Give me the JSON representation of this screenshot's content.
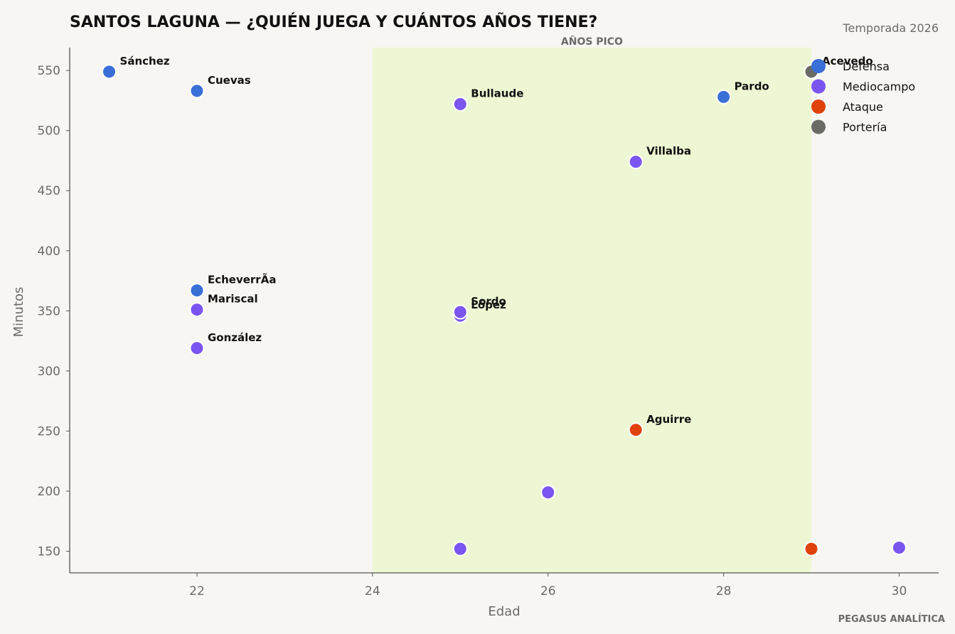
{
  "chart_data": {
    "type": "scatter",
    "title": "SANTOS LAGUNA — ¿QUIÉN JUEGA Y CUÁNTOS AÑOS TIENE?",
    "subtitle": "Temporada 2026",
    "xlabel": "Edad",
    "ylabel": "Minutos",
    "footer": "PEGASUS ANALÍTICA",
    "xlim": [
      20.55,
      30.45
    ],
    "ylim": [
      132,
      569
    ],
    "x_ticks": [
      22,
      24,
      26,
      28,
      30
    ],
    "y_ticks": [
      150,
      200,
      250,
      300,
      350,
      400,
      450,
      500,
      550
    ],
    "grid": false,
    "band": {
      "x_from": 24,
      "x_to": 29,
      "label": "AÑOS PICO",
      "color": "#eef7d3"
    },
    "legend": {
      "position": "top-right",
      "entries": [
        "Defensa",
        "Mediocampo",
        "Ataque",
        "Portería"
      ]
    },
    "colors": {
      "Defensa": "#3a6fd8",
      "Mediocampo": "#7b55f0",
      "Ataque": "#e0420c",
      "Portería": "#6b6b66"
    },
    "points": [
      {
        "name": "Sánchez",
        "x": 21,
        "y": 549,
        "group": "Defensa",
        "label": true
      },
      {
        "name": "Cuevas",
        "x": 22,
        "y": 533,
        "group": "Defensa",
        "label": true
      },
      {
        "name": "EcheverrÃ­a",
        "x": 22,
        "y": 367,
        "group": "Defensa",
        "label": true
      },
      {
        "name": "Mariscal",
        "x": 22,
        "y": 351,
        "group": "Mediocampo",
        "label": true
      },
      {
        "name": "González",
        "x": 22,
        "y": 319,
        "group": "Mediocampo",
        "label": true
      },
      {
        "name": "Bullaude",
        "x": 25,
        "y": 522,
        "group": "Mediocampo",
        "label": true
      },
      {
        "name": "López",
        "x": 25,
        "y": 346,
        "group": "Mediocampo",
        "label": true
      },
      {
        "name": "Sordo",
        "x": 25,
        "y": 349,
        "group": "Mediocampo",
        "label": true
      },
      {
        "name": "",
        "x": 25,
        "y": 152,
        "group": "Mediocampo",
        "label": false
      },
      {
        "name": "",
        "x": 26,
        "y": 199,
        "group": "Mediocampo",
        "label": false
      },
      {
        "name": "Villalba",
        "x": 27,
        "y": 474,
        "group": "Mediocampo",
        "label": true
      },
      {
        "name": "Aguirre",
        "x": 27,
        "y": 251,
        "group": "Ataque",
        "label": true
      },
      {
        "name": "Pardo",
        "x": 28,
        "y": 528,
        "group": "Defensa",
        "label": true
      },
      {
        "name": "Acevedo",
        "x": 29,
        "y": 549,
        "group": "Portería",
        "label": true
      },
      {
        "name": "",
        "x": 29,
        "y": 152,
        "group": "Ataque",
        "label": false
      },
      {
        "name": "",
        "x": 30,
        "y": 153,
        "group": "Mediocampo",
        "label": false
      }
    ]
  }
}
